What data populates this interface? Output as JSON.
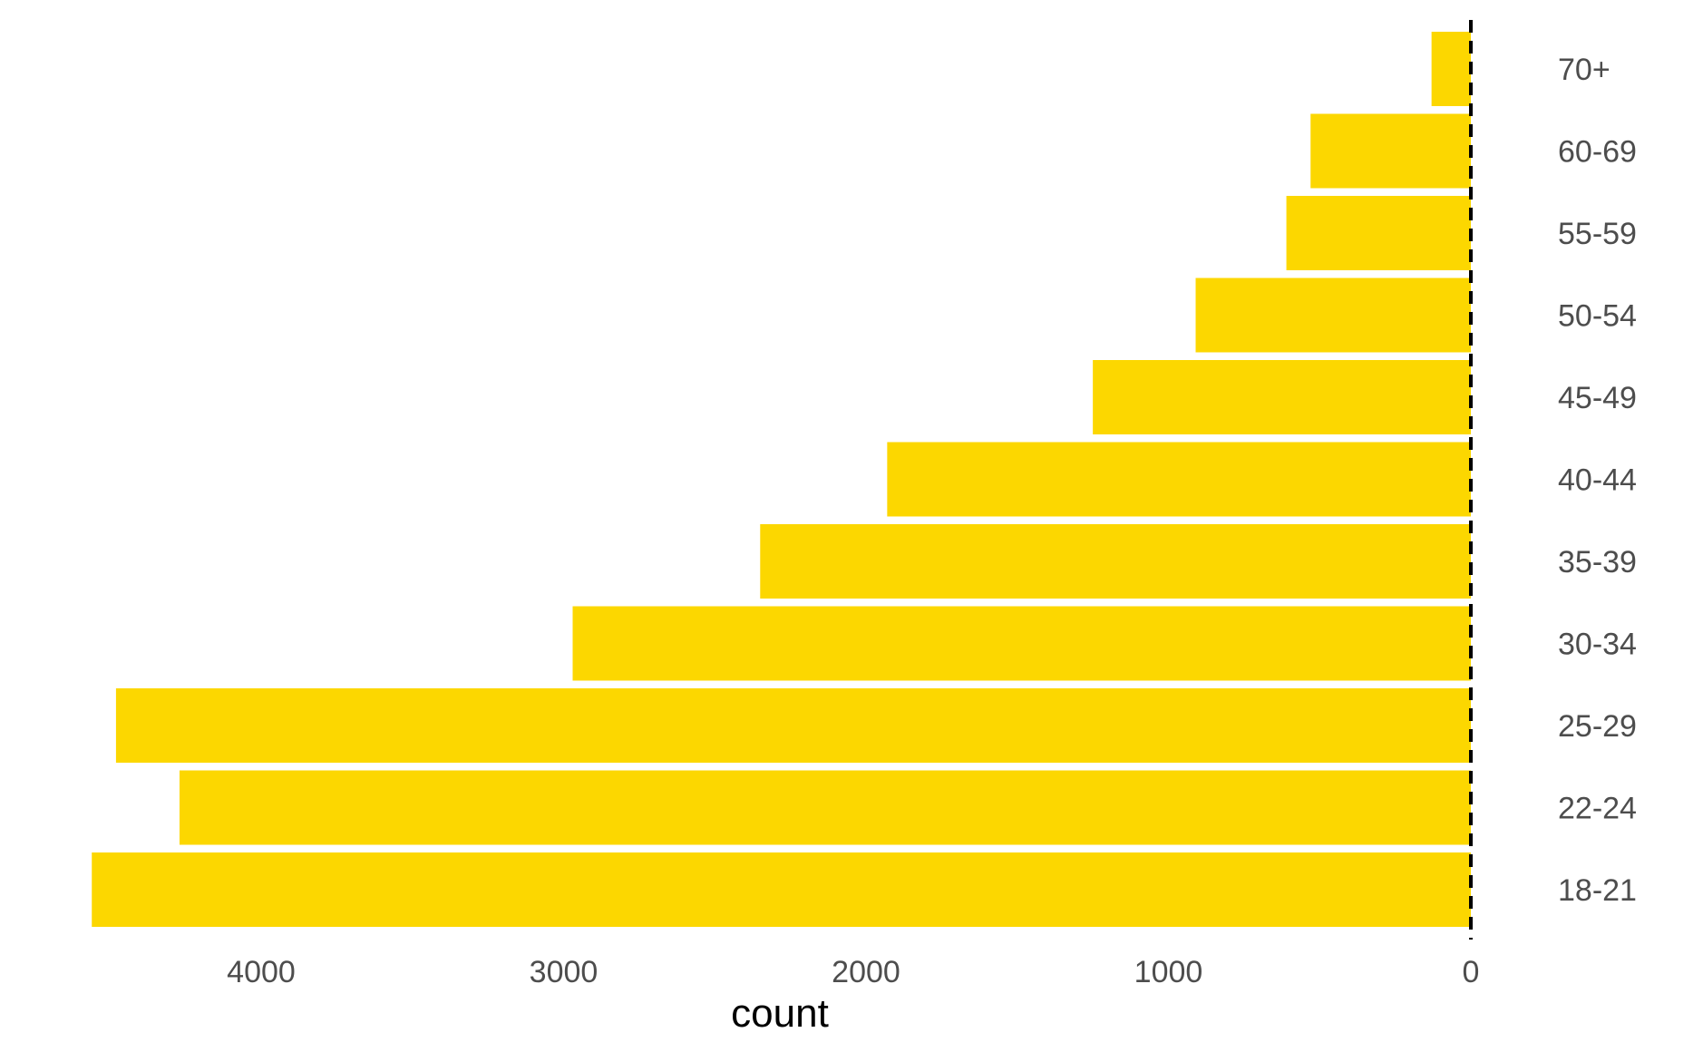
{
  "chart_data": {
    "type": "bar",
    "orientation": "horizontal",
    "x_direction": "reversed",
    "categories": [
      "18-21",
      "22-24",
      "25-29",
      "30-34",
      "35-39",
      "40-44",
      "45-49",
      "50-54",
      "55-59",
      "60-69",
      "70+"
    ],
    "values": [
      4560,
      4270,
      4480,
      2970,
      2350,
      1930,
      1250,
      910,
      610,
      530,
      130
    ],
    "xlabel": "count",
    "ylabel": "",
    "xlim": [
      0,
      4600
    ],
    "x_ticks": [
      "4000",
      "3000",
      "2000",
      "1000",
      "0"
    ],
    "x_tick_values": [
      4000,
      3000,
      2000,
      1000,
      0
    ],
    "grid": false,
    "reference_line": {
      "value": 0,
      "style": "dashed",
      "color": "#000000"
    },
    "bar_color": "#FCD700"
  }
}
